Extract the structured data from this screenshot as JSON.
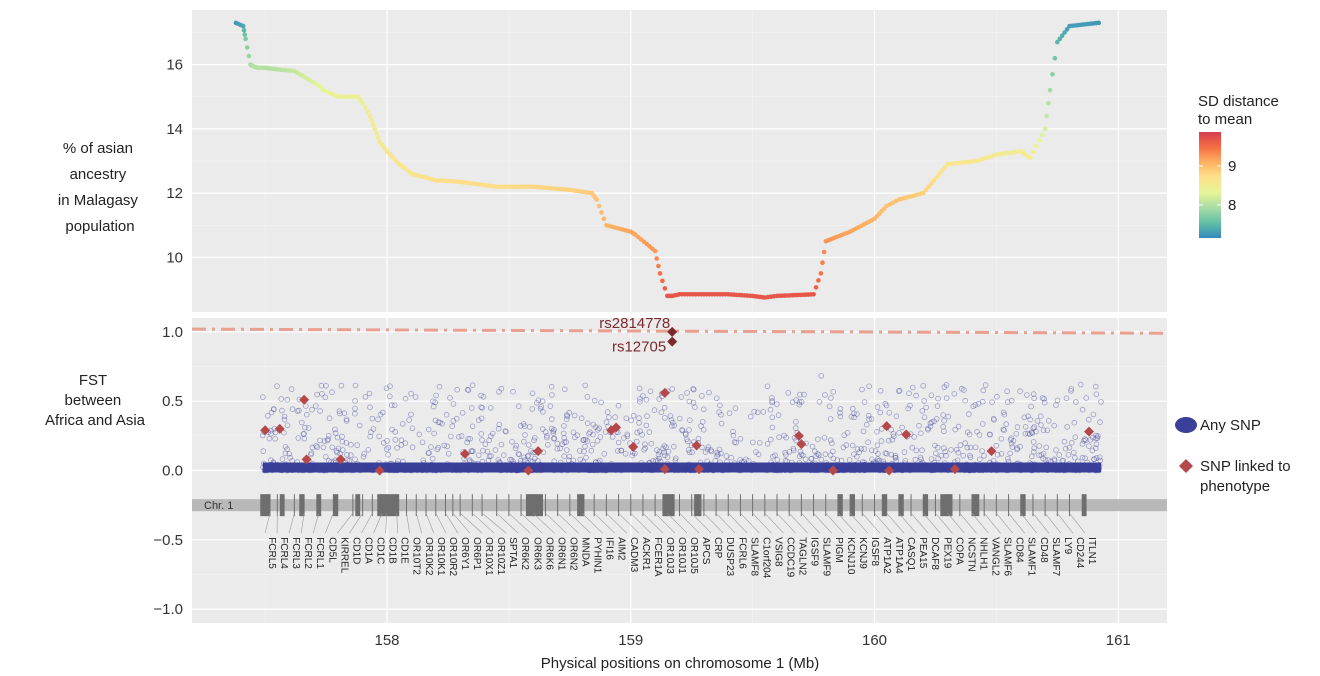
{
  "chart_data": [
    {
      "type": "line",
      "ylabel_lines": [
        "% of asian",
        "ancestry",
        "in Malagasy",
        "population"
      ],
      "ylim": [
        8.3,
        17.7
      ],
      "yticks": [
        10,
        12,
        14,
        16
      ],
      "xlim": [
        157.2,
        161.2
      ],
      "grid": true,
      "legend": {
        "title_lines": [
          "SD distance",
          "to mean"
        ],
        "ticks": [
          9,
          8
        ],
        "colors": [
          "#d53e4f",
          "#f46d43",
          "#fdae61",
          "#fee08b",
          "#e6f598",
          "#abdda4",
          "#66c2a5",
          "#3288bd"
        ],
        "placement": "right"
      },
      "series": [
        {
          "x": [
            157.38,
            157.41,
            157.42,
            157.44,
            157.45,
            157.47,
            157.5,
            157.52,
            157.55,
            157.62,
            157.72,
            157.74,
            157.8,
            157.88,
            157.9,
            157.93,
            157.95,
            157.97,
            158.0,
            158.05,
            158.07,
            158.1,
            158.2,
            158.3,
            158.45,
            158.6,
            158.75,
            158.84,
            158.86,
            158.9,
            159.0,
            159.02,
            159.1,
            159.12,
            159.15,
            159.17,
            159.2,
            159.4,
            159.5,
            159.55,
            159.6,
            159.75,
            159.78,
            159.8,
            159.9,
            160.0,
            160.05,
            160.1,
            160.2,
            160.3,
            160.42,
            160.5,
            160.6,
            160.64,
            160.7,
            160.72,
            160.75,
            160.8,
            160.92
          ],
          "y": [
            17.3,
            17.2,
            16.8,
            16.0,
            15.95,
            15.9,
            15.9,
            15.88,
            15.85,
            15.8,
            15.35,
            15.2,
            15.0,
            15.0,
            14.8,
            14.4,
            14.0,
            13.6,
            13.3,
            12.9,
            12.8,
            12.6,
            12.4,
            12.35,
            12.2,
            12.2,
            12.1,
            12.0,
            11.8,
            11.0,
            10.8,
            10.7,
            10.2,
            9.5,
            8.8,
            8.8,
            8.85,
            8.85,
            8.8,
            8.75,
            8.8,
            8.85,
            9.5,
            10.5,
            10.8,
            11.2,
            11.6,
            11.8,
            12.0,
            12.9,
            13.0,
            13.2,
            13.3,
            13.1,
            14.0,
            15.2,
            16.7,
            17.2,
            17.3
          ],
          "sd": [
            7.3,
            7.4,
            7.7,
            7.9,
            8.0,
            8.0,
            8.0,
            8.0,
            8.0,
            8.1,
            8.3,
            8.3,
            8.4,
            8.4,
            8.4,
            8.5,
            8.5,
            8.5,
            8.6,
            8.6,
            8.6,
            8.6,
            8.7,
            8.7,
            8.7,
            8.75,
            8.8,
            8.85,
            8.9,
            9.0,
            9.1,
            9.1,
            9.2,
            9.4,
            9.6,
            9.6,
            9.6,
            9.6,
            9.6,
            9.6,
            9.6,
            9.6,
            9.4,
            9.2,
            9.1,
            9.0,
            8.9,
            8.9,
            8.8,
            8.6,
            8.55,
            8.5,
            8.5,
            8.5,
            8.2,
            7.9,
            7.5,
            7.35,
            7.3
          ]
        }
      ]
    },
    {
      "type": "scatter",
      "ylabel_lines": [
        "FST",
        "between",
        "Africa and Asia"
      ],
      "xlabel": "Physical positions on chromosome 1 (Mb)",
      "xlim": [
        157.2,
        161.2
      ],
      "ylim": [
        -1.1,
        1.1
      ],
      "xticks": [
        158,
        159,
        160,
        161
      ],
      "yticks": [
        1.0,
        0.5,
        0.0,
        -0.5,
        -1.0
      ],
      "ytick_labels": [
        "1.0",
        "0.5",
        "0.0",
        "−0.5",
        "−1.0"
      ],
      "grid": true,
      "threshold_line": {
        "y": [
          1.02,
          0.99
        ],
        "color": "#e8a090",
        "style": "dash-dot"
      },
      "legend": {
        "items": [
          {
            "label": "Any SNP",
            "color": "#3a3f9a",
            "marker": "circle"
          },
          {
            "label_lines": [
              "SNP linked to",
              "phenotype"
            ],
            "color": "#b5484a",
            "marker": "diamond"
          }
        ],
        "placement": "right"
      },
      "annotations": [
        {
          "text": "rs2814778",
          "x": 159.17,
          "y": 1.0
        },
        {
          "text": "rs12705",
          "x": 159.17,
          "y": 0.93
        }
      ],
      "phenotype_snps": {
        "x": [
          157.5,
          157.56,
          157.66,
          157.67,
          157.81,
          157.97,
          158.32,
          158.58,
          158.62,
          158.92,
          158.94,
          159.01,
          159.14,
          159.14,
          159.17,
          159.17,
          159.27,
          159.28,
          159.69,
          159.7,
          159.83,
          160.05,
          160.06,
          160.13,
          160.33,
          160.48,
          160.88
        ],
        "y": [
          0.29,
          0.3,
          0.51,
          0.08,
          0.08,
          0.0,
          0.12,
          0.0,
          0.14,
          0.29,
          0.31,
          0.17,
          0.56,
          0.01,
          1.0,
          0.93,
          0.18,
          0.01,
          0.25,
          0.19,
          0.0,
          0.32,
          0.0,
          0.26,
          0.01,
          0.14,
          0.28
        ]
      },
      "chromosome": {
        "label": "Chr. 1",
        "y": -0.25,
        "genes": [
          {
            "name": "FCRL5",
            "x": 157.52
          },
          {
            "name": "FCRL4",
            "x": 157.55
          },
          {
            "name": "FCRL3",
            "x": 157.62
          },
          {
            "name": "FCRL2",
            "x": 157.66
          },
          {
            "name": "FCRL1",
            "x": 157.72
          },
          {
            "name": "CD5L",
            "x": 157.78
          },
          {
            "name": "KIRREL",
            "x": 157.86
          },
          {
            "name": "CD1D",
            "x": 157.9
          },
          {
            "name": "CD1A",
            "x": 157.94
          },
          {
            "name": "CD1C",
            "x": 157.98
          },
          {
            "name": "CD1B",
            "x": 158.0
          },
          {
            "name": "CD1E",
            "x": 158.04
          },
          {
            "name": "OR10T2",
            "x": 158.08
          },
          {
            "name": "OR10K2",
            "x": 158.12
          },
          {
            "name": "OR10K1",
            "x": 158.16
          },
          {
            "name": "OR10R2",
            "x": 158.2
          },
          {
            "name": "OR6Y1",
            "x": 158.24
          },
          {
            "name": "OR6P1",
            "x": 158.27
          },
          {
            "name": "OR10X1",
            "x": 158.3
          },
          {
            "name": "OR10Z1",
            "x": 158.35
          },
          {
            "name": "SPTA1",
            "x": 158.39
          },
          {
            "name": "OR6K2",
            "x": 158.45
          },
          {
            "name": "OR6K3",
            "x": 158.5
          },
          {
            "name": "OR6K6",
            "x": 158.55
          },
          {
            "name": "OR6N1",
            "x": 158.6
          },
          {
            "name": "OR6N2",
            "x": 158.65
          },
          {
            "name": "MNDA",
            "x": 158.7
          },
          {
            "name": "PYHIN1",
            "x": 158.75
          },
          {
            "name": "IFI16",
            "x": 158.8
          },
          {
            "name": "AIM2",
            "x": 158.85
          },
          {
            "name": "CADM3",
            "x": 158.9
          },
          {
            "name": "ACKR1",
            "x": 158.95
          },
          {
            "name": "FCER1A",
            "x": 159.0
          },
          {
            "name": "OR10J3",
            "x": 159.05
          },
          {
            "name": "OR10J1",
            "x": 159.1
          },
          {
            "name": "OR10J5",
            "x": 159.15
          },
          {
            "name": "APCS",
            "x": 159.2
          },
          {
            "name": "CRP",
            "x": 159.25
          },
          {
            "name": "DUSP23",
            "x": 159.3
          },
          {
            "name": "FCRL6",
            "x": 159.35
          },
          {
            "name": "SLAMF8",
            "x": 159.4
          },
          {
            "name": "C1orf204",
            "x": 159.45
          },
          {
            "name": "VSIG8",
            "x": 159.5
          },
          {
            "name": "CCDC19",
            "x": 159.55
          },
          {
            "name": "TAGLN2",
            "x": 159.6
          },
          {
            "name": "IGSF9",
            "x": 159.65
          },
          {
            "name": "SLAMF9",
            "x": 159.7
          },
          {
            "name": "PIGM",
            "x": 159.75
          },
          {
            "name": "KCNJ10",
            "x": 159.8
          },
          {
            "name": "KCNJ9",
            "x": 159.85
          },
          {
            "name": "IGSF8",
            "x": 159.9
          },
          {
            "name": "ATP1A2",
            "x": 159.95
          },
          {
            "name": "ATP1A4",
            "x": 160.0
          },
          {
            "name": "CASQ1",
            "x": 160.05
          },
          {
            "name": "PEA15",
            "x": 160.1
          },
          {
            "name": "DCAF8",
            "x": 160.15
          },
          {
            "name": "PEX19",
            "x": 160.2
          },
          {
            "name": "COPA",
            "x": 160.25
          },
          {
            "name": "NCSTN",
            "x": 160.3
          },
          {
            "name": "NHLH1",
            "x": 160.35
          },
          {
            "name": "VANGL2",
            "x": 160.4
          },
          {
            "name": "SLAMF6",
            "x": 160.45
          },
          {
            "name": "CD84",
            "x": 160.5
          },
          {
            "name": "SLAMF1",
            "x": 160.55
          },
          {
            "name": "CD48",
            "x": 160.6
          },
          {
            "name": "SLAMF7",
            "x": 160.65
          },
          {
            "name": "LY9",
            "x": 160.7
          },
          {
            "name": "CD244",
            "x": 160.75
          },
          {
            "name": "ITLN1",
            "x": 160.8
          }
        ]
      }
    }
  ]
}
